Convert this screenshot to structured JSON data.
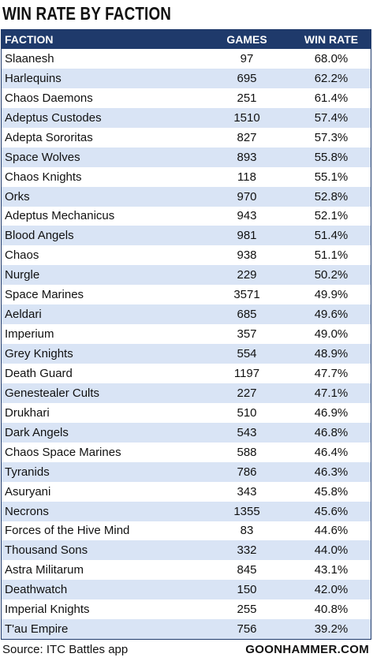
{
  "title": "WIN RATE BY FACTION",
  "source": "Source: ITC Battles app",
  "brand": "GOONHAMMER.COM",
  "colors": {
    "header_bg": "#1f3a6b",
    "row_alt": "#d9e4f5",
    "row": "#ffffff"
  },
  "chart_data": {
    "type": "table",
    "title": "WIN RATE BY FACTION",
    "columns": [
      "FACTION",
      "GAMES",
      "WIN RATE"
    ],
    "rows": [
      [
        "Slaanesh",
        "97",
        "68.0%"
      ],
      [
        "Harlequins",
        "695",
        "62.2%"
      ],
      [
        "Chaos Daemons",
        "251",
        "61.4%"
      ],
      [
        "Adeptus Custodes",
        "1510",
        "57.4%"
      ],
      [
        "Adepta Sororitas",
        "827",
        "57.3%"
      ],
      [
        "Space Wolves",
        "893",
        "55.8%"
      ],
      [
        "Chaos Knights",
        "118",
        "55.1%"
      ],
      [
        "Orks",
        "970",
        "52.8%"
      ],
      [
        "Adeptus Mechanicus",
        "943",
        "52.1%"
      ],
      [
        "Blood Angels",
        "981",
        "51.4%"
      ],
      [
        "Chaos",
        "938",
        "51.1%"
      ],
      [
        "Nurgle",
        "229",
        "50.2%"
      ],
      [
        "Space Marines",
        "3571",
        "49.9%"
      ],
      [
        "Aeldari",
        "685",
        "49.6%"
      ],
      [
        "Imperium",
        "357",
        "49.0%"
      ],
      [
        "Grey Knights",
        "554",
        "48.9%"
      ],
      [
        "Death Guard",
        "1197",
        "47.7%"
      ],
      [
        "Genestealer Cults",
        "227",
        "47.1%"
      ],
      [
        "Drukhari",
        "510",
        "46.9%"
      ],
      [
        "Dark Angels",
        "543",
        "46.8%"
      ],
      [
        "Chaos Space Marines",
        "588",
        "46.4%"
      ],
      [
        "Tyranids",
        "786",
        "46.3%"
      ],
      [
        "Asuryani",
        "343",
        "45.8%"
      ],
      [
        "Necrons",
        "1355",
        "45.6%"
      ],
      [
        "Forces of the Hive Mind",
        "83",
        "44.6%"
      ],
      [
        "Thousand Sons",
        "332",
        "44.0%"
      ],
      [
        "Astra Militarum",
        "845",
        "43.1%"
      ],
      [
        "Deathwatch",
        "150",
        "42.0%"
      ],
      [
        "Imperial Knights",
        "255",
        "40.8%"
      ],
      [
        "T'au Empire",
        "756",
        "39.2%"
      ]
    ]
  }
}
